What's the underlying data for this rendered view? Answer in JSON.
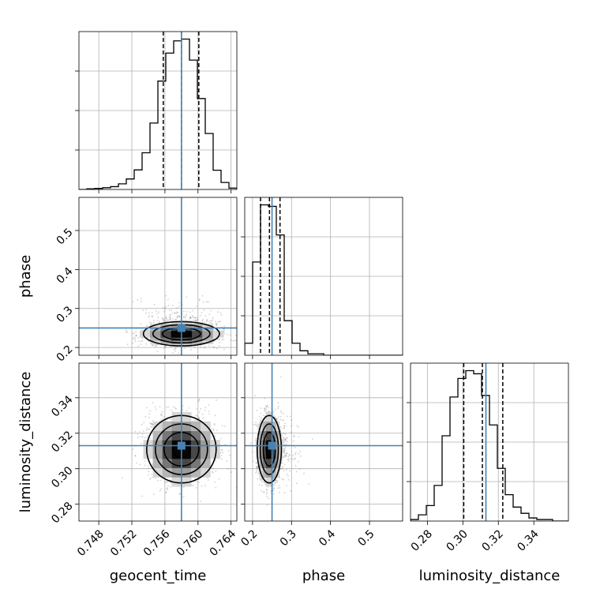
{
  "chart_data": {
    "type": "corner",
    "parameters": [
      "geocent_time",
      "phase",
      "luminosity_distance"
    ],
    "labels": {
      "geocent_time": "geocent_time",
      "phase": "phase",
      "luminosity_distance": "luminosity_distance"
    },
    "ranges": {
      "geocent_time": [
        0.7456,
        0.7647
      ],
      "phase": [
        0.18,
        0.585
      ],
      "luminosity_distance": [
        0.2705,
        0.3595
      ]
    },
    "ticks": {
      "geocent_time": [
        "0.748",
        "0.752",
        "0.756",
        "0.760",
        "0.764"
      ],
      "phase_y": [
        "0.2",
        "0.3",
        "0.4",
        "0.5"
      ],
      "phase_x": [
        "0.2",
        "0.3",
        "0.4",
        "0.5"
      ],
      "luminosity_distance_y": [
        "0.28",
        "0.30",
        "0.32",
        "0.34"
      ],
      "luminosity_distance_x": [
        "0.28",
        "0.30",
        "0.32",
        "0.34"
      ]
    },
    "truths": {
      "geocent_time": 0.758,
      "phase": 0.25,
      "luminosity_distance": 0.313
    },
    "truth_color": "#4682b4",
    "quantiles": {
      "geocent_time": [
        0.7558,
        0.758,
        0.7601
      ],
      "phase": [
        0.2205,
        0.2434,
        0.2705
      ],
      "luminosity_distance": [
        0.3005,
        0.311,
        0.3225
      ]
    },
    "histograms": {
      "geocent_time": {
        "x0": 0.7456,
        "x1": 0.7647,
        "counts": [
          0,
          2,
          3,
          5,
          8,
          16,
          30,
          56,
          105,
          190,
          310,
          390,
          425,
          430,
          370,
          260,
          160,
          55,
          20,
          4
        ]
      },
      "phase": {
        "x0": 0.18,
        "x1": 0.585,
        "counts": [
          8,
          62,
          100,
          99,
          80,
          23,
          8,
          3,
          1,
          1,
          0,
          0,
          0,
          0,
          0,
          0,
          0,
          0,
          0,
          0
        ]
      },
      "luminosity_distance": {
        "x0": 0.2705,
        "x1": 0.3595,
        "counts": [
          1,
          4,
          10,
          23,
          55,
          80,
          92,
          97,
          95,
          81,
          62,
          34,
          17,
          9,
          5,
          2,
          1,
          1,
          0,
          0
        ]
      }
    },
    "densities": {
      "phase_vs_geocent_time": {
        "mean": [
          0.758,
          0.235
        ],
        "sd": [
          0.0023,
          0.0155
        ]
      },
      "luminosity_distance_vs_geocent_time": {
        "mean": [
          0.758,
          0.311
        ],
        "sd": [
          0.0021,
          0.0095
        ]
      },
      "luminosity_distance_vs_phase": {
        "mean": [
          0.243,
          0.311
        ],
        "sd": [
          0.0155,
          0.0095
        ]
      }
    },
    "grid": true
  }
}
